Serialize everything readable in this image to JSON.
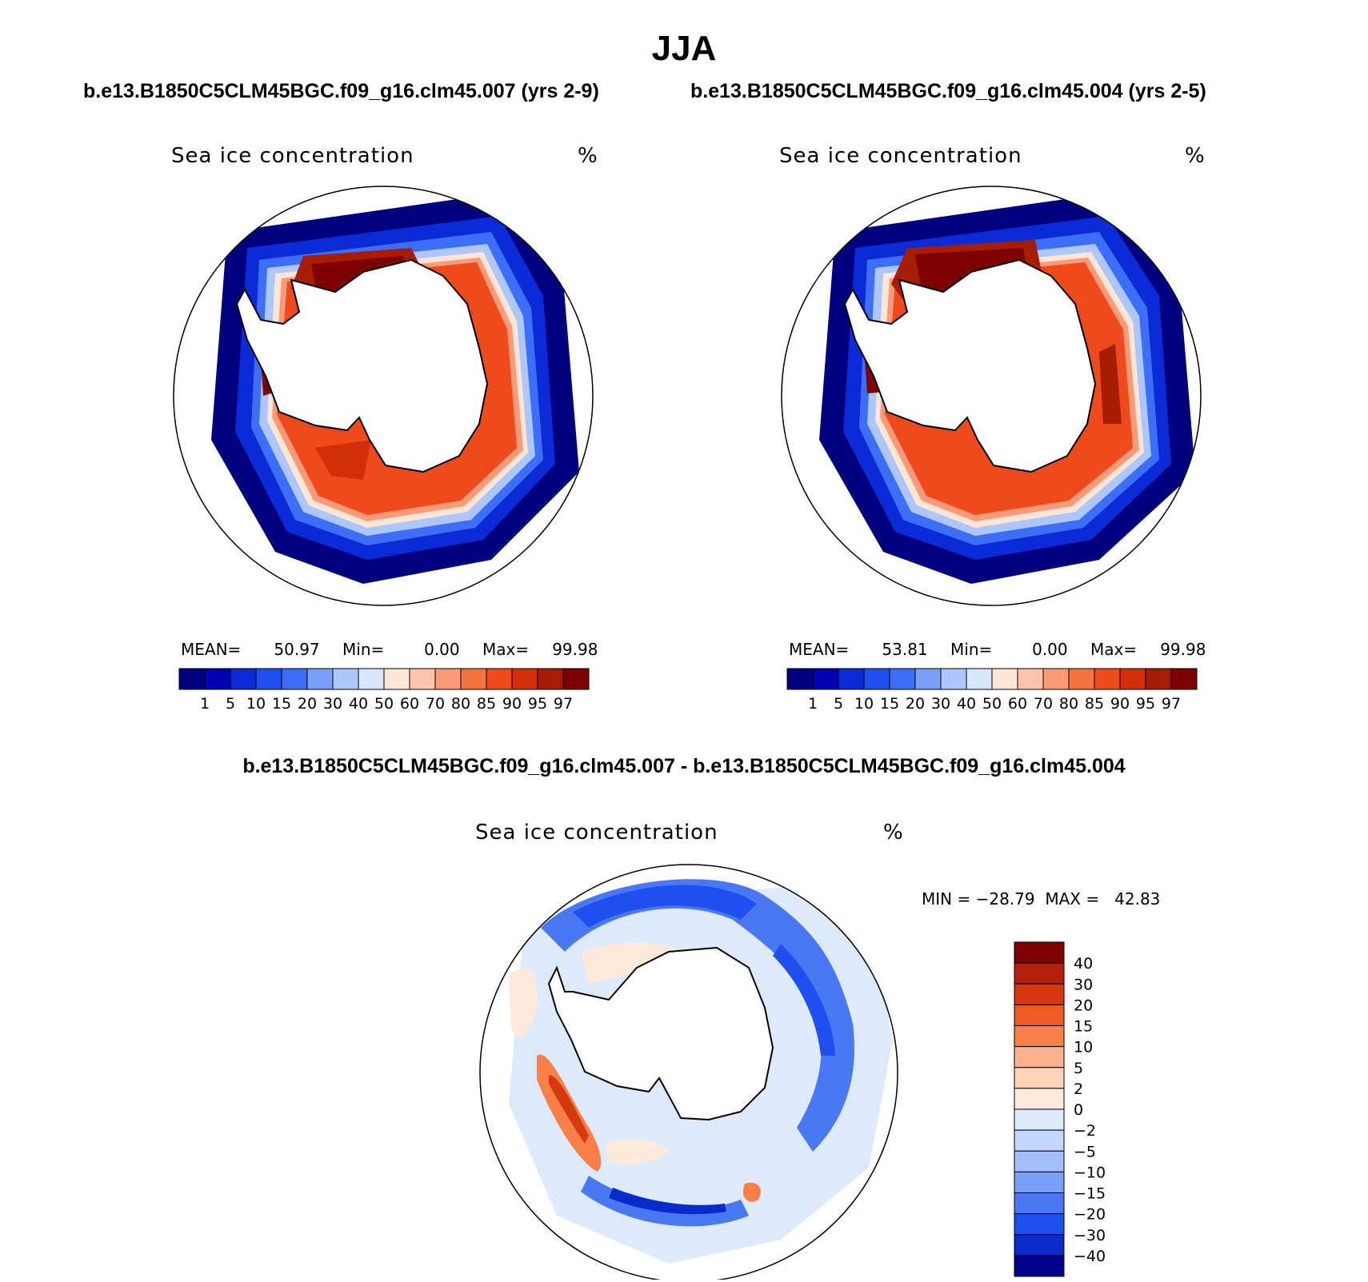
{
  "title": "JJA",
  "panels": [
    {
      "case": "b.e13.B1850C5CLM45BGC.f09_g16.clm45.007 (yrs 2-9)",
      "variable": "Sea ice concentration",
      "units": "%",
      "mean_label": "MEAN=",
      "mean": "50.97",
      "min_label": "Min=",
      "min": "0.00",
      "max_label": "Max=",
      "max": "99.98"
    },
    {
      "case": "b.e13.B1850C5CLM45BGC.f09_g16.clm45.004 (yrs 2-5)",
      "variable": "Sea ice concentration",
      "units": "%",
      "mean_label": "MEAN=",
      "mean": "53.81",
      "min_label": "Min=",
      "min": "0.00",
      "max_label": "Max=",
      "max": "99.98"
    }
  ],
  "colorbar": {
    "labels": [
      "1",
      "5",
      "10",
      "15",
      "20",
      "30",
      "40",
      "50",
      "60",
      "70",
      "80",
      "85",
      "90",
      "95",
      "97"
    ],
    "colors": [
      "#00007f",
      "#0000b3",
      "#0a2bd6",
      "#1f4fef",
      "#3d6ef7",
      "#7a9ff8",
      "#adc6fb",
      "#d6e6fd",
      "#fde6d6",
      "#fcc4a8",
      "#f99a78",
      "#f5733f",
      "#ef4a1c",
      "#d32e0a",
      "#a81b05",
      "#7f0000"
    ]
  },
  "difference": {
    "title": "b.e13.B1850C5CLM45BGC.f09_g16.clm45.007 - b.e13.B1850C5CLM45BGC.f09_g16.clm45.004",
    "variable": "Sea ice concentration",
    "units": "%",
    "minmax_text": "MIN = −28.79  MAX =   42.83",
    "colorbar_labels": [
      "40",
      "30",
      "20",
      "15",
      "10",
      "5",
      "2",
      "0",
      "−2",
      "−5",
      "−10",
      "−15",
      "−20",
      "−30",
      "−40"
    ],
    "colorbar_colors": [
      "#7f0000",
      "#b3200a",
      "#d6380f",
      "#f05a23",
      "#f88048",
      "#fbb08e",
      "#fdd2b8",
      "#fdeadb",
      "#dceafb",
      "#c2d7fb",
      "#a2bff9",
      "#7a9ff8",
      "#4a78f4",
      "#1f4fef",
      "#0a2bcc",
      "#000090"
    ]
  }
}
